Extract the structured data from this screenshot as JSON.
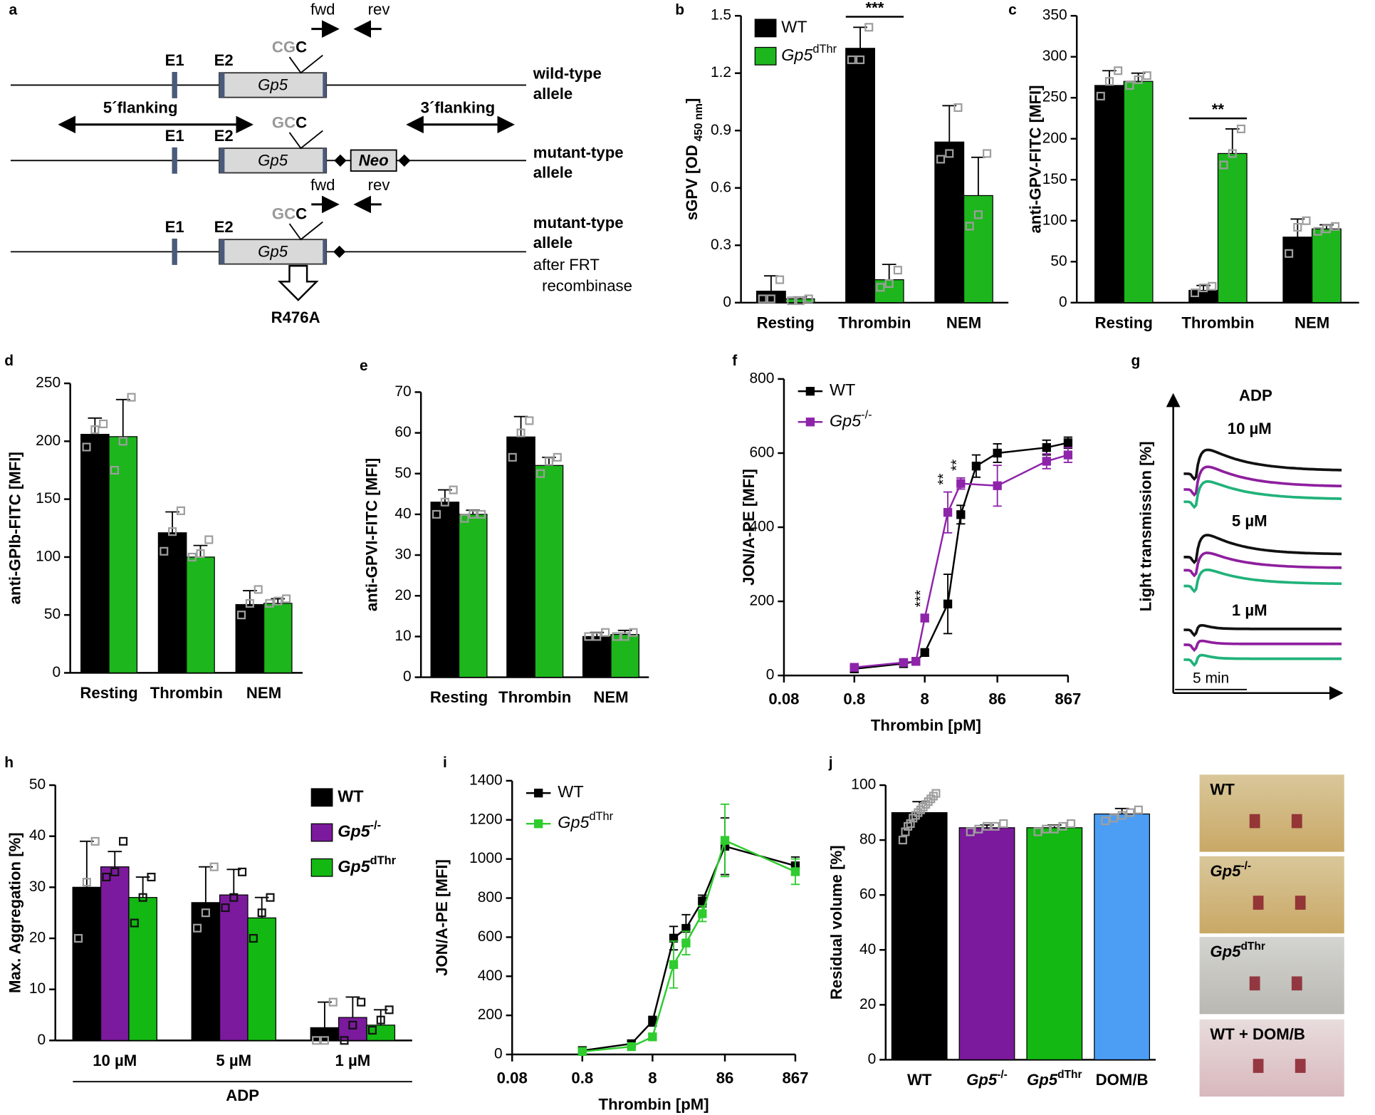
{
  "diagram": {
    "label": "a",
    "alleles": [
      {
        "exons": [
          "E1",
          "E2"
        ],
        "codon": "CG",
        "codon_end": "C",
        "gene": "Gp5",
        "name": [
          "wild-type",
          "allele"
        ],
        "primers": [
          "fwd",
          "rev"
        ]
      },
      {
        "exons": [
          "E1",
          "E2"
        ],
        "codon": "GC",
        "codon_end": "C",
        "gene": "Gp5",
        "name": [
          "mutant-type",
          "allele"
        ],
        "cassette": "Neo"
      },
      {
        "exons": [
          "E1",
          "E2"
        ],
        "codon": "GC",
        "codon_end": "C",
        "gene": "Gp5",
        "name": [
          "mutant-type",
          "allele"
        ],
        "note": [
          "after FRT",
          "recombinase"
        ],
        "primers": [
          "fwd",
          "rev"
        ],
        "mutation": "R476A"
      }
    ],
    "flanks": [
      "5´flanking",
      "3´flanking"
    ]
  },
  "traces": {
    "label": "g",
    "title": "ADP",
    "ylabel": "Light transmission [%]",
    "doses": [
      "10 µM",
      "5 µM",
      "1 µM"
    ],
    "scale": "5 min"
  },
  "photos": {
    "labels": [
      {
        "text": "WT"
      },
      {
        "text": "Gp5",
        "sup": "-/-"
      },
      {
        "text": "Gp5",
        "sup": "dThr"
      },
      {
        "text": "WT + DOM/B"
      }
    ]
  },
  "chart_data": [
    {
      "type": "bar",
      "label": "b",
      "ylabel": "sGPV [OD",
      "ylabel_sub": "450 nm",
      "ylabel_end": "]",
      "categories": [
        "Resting",
        "Thrombin",
        "NEM"
      ],
      "series": [
        {
          "name": "WT",
          "color": "#000000",
          "point_color": "#9e9e9e",
          "values": [
            0.06,
            1.33,
            0.84
          ],
          "errors": [
            0.08,
            0.11,
            0.19
          ],
          "points": [
            [
              0.02,
              0.02,
              0.12
            ],
            [
              1.27,
              1.27,
              1.44
            ],
            [
              0.75,
              0.78,
              1.02
            ]
          ]
        },
        {
          "name": "Gp5",
          "name_sup": "dThr",
          "color": "#1db61d",
          "point_color": "#9e9e9e",
          "values": [
            0.02,
            0.12,
            0.56
          ],
          "errors": [
            0.01,
            0.08,
            0.2
          ],
          "points": [
            [
              0.01,
              0.01,
              0.02
            ],
            [
              0.08,
              0.1,
              0.17
            ],
            [
              0.4,
              0.46,
              0.78
            ]
          ]
        }
      ],
      "ylim": [
        0,
        1.5
      ],
      "yticks": [
        0,
        0.3,
        0.6,
        0.9,
        1.2,
        1.5
      ],
      "legend": "upper left",
      "annotations": [
        {
          "text": "***",
          "category": "Thrombin"
        }
      ]
    },
    {
      "type": "bar",
      "label": "c",
      "ylabel": "anti-GPV-FITC [MFI]",
      "categories": [
        "Resting",
        "Thrombin",
        "NEM"
      ],
      "series": [
        {
          "color": "#000000",
          "point_color": "#9e9e9e",
          "values": [
            265,
            15,
            80
          ],
          "errors": [
            18,
            6,
            22
          ],
          "points": [
            [
              252,
              270,
              283
            ],
            [
              12,
              18,
              20
            ],
            [
              60,
              92,
              100
            ]
          ]
        },
        {
          "color": "#1db61d",
          "point_color": "#9e9e9e",
          "values": [
            270,
            182,
            90
          ],
          "errors": [
            10,
            30,
            5
          ],
          "points": [
            [
              265,
              272,
              277
            ],
            [
              168,
              182,
              212
            ],
            [
              87,
              90,
              93
            ]
          ]
        }
      ],
      "ylim": [
        0,
        350
      ],
      "yticks": [
        0,
        50,
        100,
        150,
        200,
        250,
        300,
        350
      ],
      "annotations": [
        {
          "text": "**",
          "category": "Thrombin"
        }
      ]
    },
    {
      "type": "bar",
      "label": "d",
      "ylabel": "anti-GPIb-FITC [MFI]",
      "categories": [
        "Resting",
        "Thrombin",
        "NEM"
      ],
      "series": [
        {
          "color": "#000000",
          "point_color": "#9e9e9e",
          "values": [
            206,
            121,
            59
          ],
          "errors": [
            14,
            18,
            12
          ],
          "points": [
            [
              195,
              210,
              215
            ],
            [
              105,
              122,
              140
            ],
            [
              50,
              60,
              72
            ]
          ]
        },
        {
          "color": "#1db61d",
          "point_color": "#9e9e9e",
          "values": [
            204,
            100,
            60
          ],
          "errors": [
            32,
            10,
            4
          ],
          "points": [
            [
              175,
              200,
              238
            ],
            [
              100,
              103,
              115
            ],
            [
              60,
              62,
              64
            ]
          ]
        }
      ],
      "ylim": [
        0,
        250
      ],
      "yticks": [
        0,
        50,
        100,
        150,
        200,
        250
      ]
    },
    {
      "type": "bar",
      "label": "e",
      "ylabel": "anti-GPVI-FITC [MFI]",
      "categories": [
        "Resting",
        "Thrombin",
        "NEM"
      ],
      "series": [
        {
          "color": "#000000",
          "point_color": "#9e9e9e",
          "values": [
            43,
            59,
            10
          ],
          "errors": [
            3,
            5,
            1
          ],
          "points": [
            [
              40,
              43,
              46
            ],
            [
              54,
              60,
              63
            ],
            [
              10,
              10,
              11
            ]
          ]
        },
        {
          "color": "#1db61d",
          "point_color": "#9e9e9e",
          "values": [
            40,
            52,
            10.5
          ],
          "errors": [
            1,
            2,
            1
          ],
          "points": [
            [
              39,
              40,
              40
            ],
            [
              50,
              53,
              54
            ],
            [
              10,
              10,
              11
            ]
          ]
        }
      ],
      "ylim": [
        0,
        70
      ],
      "yticks": [
        0,
        10,
        20,
        30,
        40,
        50,
        60,
        70
      ]
    },
    {
      "type": "line",
      "label": "f",
      "ylabel": "JON/A-PE [MFI]",
      "xlabel": "Thrombin [pM]",
      "xscale": "log",
      "xlim": [
        0.08,
        867
      ],
      "xticks": [
        0.08,
        0.8,
        8,
        86,
        867
      ],
      "ylim": [
        0,
        800
      ],
      "yticks": [
        0,
        200,
        400,
        600,
        800
      ],
      "legend": "upper left",
      "series": [
        {
          "name": "WT",
          "color": "#000000",
          "x": [
            0.8,
            4,
            6,
            8,
            17,
            26,
            43,
            86,
            430,
            867
          ],
          "values": [
            18,
            32,
            38,
            62,
            193,
            434,
            565,
            600,
            615,
            628
          ],
          "errors": [
            10,
            8,
            8,
            8,
            80,
            25,
            30,
            25,
            20,
            15
          ]
        },
        {
          "name": "Gp5",
          "name_sup": "-/-",
          "color": "#8e24aa",
          "x": [
            0.8,
            4,
            6,
            8,
            17,
            26,
            86,
            430,
            867
          ],
          "values": [
            22,
            35,
            38,
            155,
            440,
            518,
            512,
            578,
            595
          ],
          "errors": [
            8,
            8,
            8,
            10,
            55,
            15,
            55,
            20,
            20
          ]
        }
      ],
      "annotations": [
        {
          "text": "***",
          "x": 8
        },
        {
          "text": "**",
          "x": 17
        },
        {
          "text": "**",
          "x": 26
        }
      ]
    },
    {
      "type": "bar",
      "label": "h",
      "ylabel": "Max. Aggregation [%]",
      "xlabel": "ADP",
      "categories": [
        "10 µM",
        "5 µM",
        "1 µM"
      ],
      "series": [
        {
          "name": "WT",
          "color": "#000000",
          "point_color": "#9e9e9e",
          "values": [
            30,
            27,
            2.5
          ],
          "errors": [
            9,
            7,
            5
          ],
          "points": [
            [
              20,
              31,
              39
            ],
            [
              22,
              25,
              34
            ],
            [
              0,
              0,
              7.5
            ]
          ]
        },
        {
          "name": "Gp5",
          "name_sup": "-/-",
          "color": "#7b1a9c",
          "point_color": "#111111",
          "values": [
            34,
            28.5,
            4.5
          ],
          "errors": [
            3,
            5,
            4
          ],
          "points": [
            [
              32,
              33,
              39
            ],
            [
              26,
              28,
              33
            ],
            [
              0,
              3,
              7.5
            ]
          ]
        },
        {
          "name": "Gp5",
          "name_sup": "dThr",
          "color": "#13b813",
          "point_color": "#111111",
          "values": [
            28,
            24,
            3
          ],
          "errors": [
            4,
            4,
            3
          ],
          "points": [
            [
              23,
              28,
              32
            ],
            [
              20,
              25,
              28
            ],
            [
              2,
              4,
              6
            ]
          ]
        }
      ],
      "ylim": [
        0,
        50
      ],
      "yticks": [
        0,
        10,
        20,
        30,
        40,
        50
      ],
      "legend": "upper right",
      "legend_bold": true
    },
    {
      "type": "line",
      "label": "i",
      "ylabel": "JON/A-PE [MFI]",
      "xlabel": "Thrombin [pM]",
      "xscale": "log",
      "xlim": [
        0.08,
        867
      ],
      "xticks": [
        0.08,
        0.8,
        8,
        86,
        867
      ],
      "ylim": [
        0,
        1400
      ],
      "yticks": [
        0,
        200,
        400,
        600,
        800,
        1000,
        1200,
        1400
      ],
      "legend": "upper left",
      "series": [
        {
          "name": "WT",
          "color": "#000000",
          "x": [
            0.8,
            4,
            8,
            16,
            24,
            41,
            86,
            867
          ],
          "values": [
            20,
            55,
            170,
            595,
            645,
            785,
            1065,
            965
          ],
          "errors": [
            10,
            15,
            25,
            60,
            70,
            30,
            145,
            45
          ]
        },
        {
          "name": "Gp5",
          "name_sup": "dThr",
          "color": "#2ecc2e",
          "x": [
            0.8,
            4,
            8,
            16,
            24,
            41,
            86,
            867
          ],
          "values": [
            15,
            40,
            90,
            460,
            570,
            720,
            1095,
            935
          ],
          "errors": [
            8,
            10,
            15,
            120,
            60,
            40,
            185,
            65
          ]
        }
      ]
    },
    {
      "type": "bar",
      "label": "j",
      "ylabel": "Residual volume [%]",
      "categories": [
        "WT",
        "Gp5",
        "Gp5",
        "DOM/B"
      ],
      "category_sups": [
        null,
        "-/-",
        "dThr",
        null
      ],
      "values": [
        90,
        84.5,
        84.5,
        89.5
      ],
      "errors": [
        4,
        1,
        1,
        2
      ],
      "colors": [
        "#000000",
        "#7b1a9c",
        "#13b813",
        "#4c9ef5"
      ],
      "point_color": "#9e9e9e",
      "points": [
        [
          80,
          83,
          85,
          86,
          88,
          89,
          90,
          91,
          92,
          93,
          94,
          95,
          96,
          97
        ],
        [
          83,
          84,
          85,
          85,
          86
        ],
        [
          83,
          84,
          84,
          85,
          86
        ],
        [
          87,
          88,
          89,
          90,
          91
        ]
      ],
      "ylim": [
        0,
        100
      ],
      "yticks": [
        0,
        20,
        40,
        60,
        80,
        100
      ]
    }
  ]
}
